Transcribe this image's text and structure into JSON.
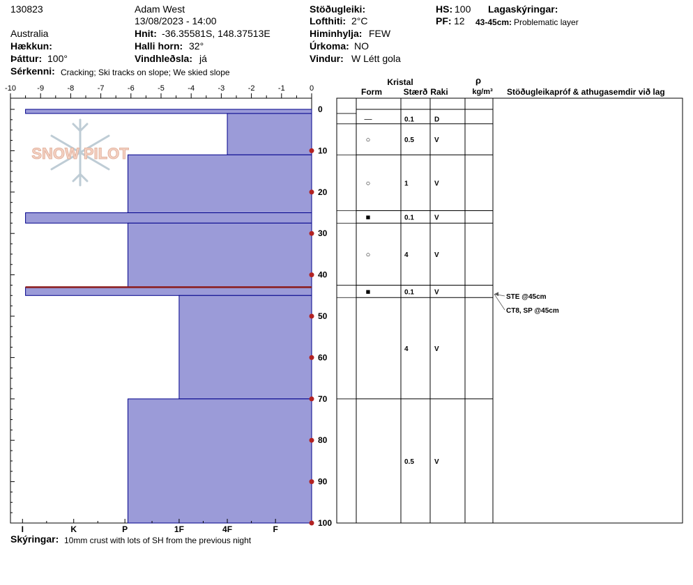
{
  "header": {
    "id": "130823",
    "observer": "Adam West",
    "datetime": "13/08/2023 - 14:00",
    "location": "Australia",
    "coords_label": "Hnit:",
    "coords": "-36.35581S, 148.37513E",
    "elevation_label": "Hækkun:",
    "elevation": "",
    "slope_label": "Halli horn:",
    "slope": "32°",
    "aspect_label": "Þáttur:",
    "aspect": "100°",
    "wind_loading_label": "Vindhleðsla:",
    "wind_loading": "já",
    "stability_label": "Stöðugleiki:",
    "stability": "",
    "air_temp_label": "Lofthiti:",
    "air_temp": "2°C",
    "sky_label": "Himinhylja:",
    "sky": "FEW",
    "precip_label": "Úrkoma:",
    "precip": "NO",
    "wind_label": "Vindur:",
    "wind": "W Létt gola",
    "hs_label": "HS:",
    "hs": "100",
    "pf_label": "PF:",
    "pf": "12",
    "layer_notes_label": "Lagaskýringar:",
    "layer_note_range": "43-45cm:",
    "layer_note_text": "Problematic layer",
    "features_label": "Sérkenni:",
    "features": "Cracking;  Ski tracks on slope;  We skied slope"
  },
  "footer": {
    "notes_label": "Skýringar:",
    "notes": "10mm crust with lots of SH from the previous night"
  },
  "watermark": "SNOW PILOT",
  "table_headers": {
    "crystal": "Kristal",
    "form": "Form",
    "size": "Stærð",
    "moisture": "Raki",
    "density_symbol": "ρ",
    "density_unit": "kg/m³",
    "tests": "Stöðugleikapróf & athugasemdir við lag"
  },
  "colors": {
    "layer_fill": "#9b9bd8",
    "layer_stroke": "#00008b",
    "problem_line": "#8b1a1a",
    "depth_marker": "#b22222"
  },
  "chart_data": {
    "type": "bar",
    "orientation": "horizontal",
    "x_top_ticks": [
      "-10",
      "-9",
      "-8",
      "-7",
      "-6",
      "-5",
      "-4",
      "-3",
      "-2",
      "-1",
      "0"
    ],
    "x_top_range": [
      -10,
      0
    ],
    "hardness_ticks": [
      "I",
      "K",
      "P",
      "1F",
      "4F",
      "F"
    ],
    "depth_ticks": [
      "0",
      "10",
      "20",
      "30",
      "40",
      "50",
      "60",
      "70",
      "80",
      "90",
      "100"
    ],
    "ylim": [
      0,
      100
    ],
    "hardness_scale": "negative hand hardness index; 0 = none, -9.5 = widest",
    "layers": [
      {
        "top": 0,
        "bottom": 1,
        "hardness": -9.5
      },
      {
        "top": 1,
        "bottom": 11,
        "hardness": -2.8
      },
      {
        "top": 11,
        "bottom": 25,
        "hardness": -6.1
      },
      {
        "top": 25,
        "bottom": 27.5,
        "hardness": -9.5
      },
      {
        "top": 27.5,
        "bottom": 43,
        "hardness": -6.1
      },
      {
        "top": 43,
        "bottom": 45,
        "hardness": -9.5
      },
      {
        "top": 45,
        "bottom": 70,
        "hardness": -4.4
      },
      {
        "top": 70,
        "bottom": 100,
        "hardness": -6.1
      }
    ],
    "problem_layer_depth": 43,
    "table_rows": [
      {
        "top": 1,
        "bottom": 3.5,
        "form": "—",
        "size": "0.1",
        "moisture": "D"
      },
      {
        "top": 3.5,
        "bottom": 11,
        "form": "○",
        "size": "0.5",
        "moisture": "V"
      },
      {
        "top": 11,
        "bottom": 24.5,
        "form": "○",
        "size": "1",
        "moisture": "V"
      },
      {
        "top": 24.5,
        "bottom": 27.5,
        "form": "■",
        "size": "0.1",
        "moisture": "V"
      },
      {
        "top": 27.5,
        "bottom": 42.5,
        "form": "○",
        "size": "4",
        "moisture": "V"
      },
      {
        "top": 42.5,
        "bottom": 45.5,
        "form": "■",
        "size": "0.1",
        "moisture": "V"
      },
      {
        "top": 45.5,
        "bottom": 70,
        "form": "",
        "size": "4",
        "moisture": "V"
      },
      {
        "top": 70,
        "bottom": 100,
        "form": "",
        "size": "0.5",
        "moisture": "V"
      }
    ],
    "tests": [
      {
        "label": "STE @45cm",
        "depth": 45
      },
      {
        "label": "CT8, SP @45cm",
        "depth": 45
      }
    ]
  }
}
